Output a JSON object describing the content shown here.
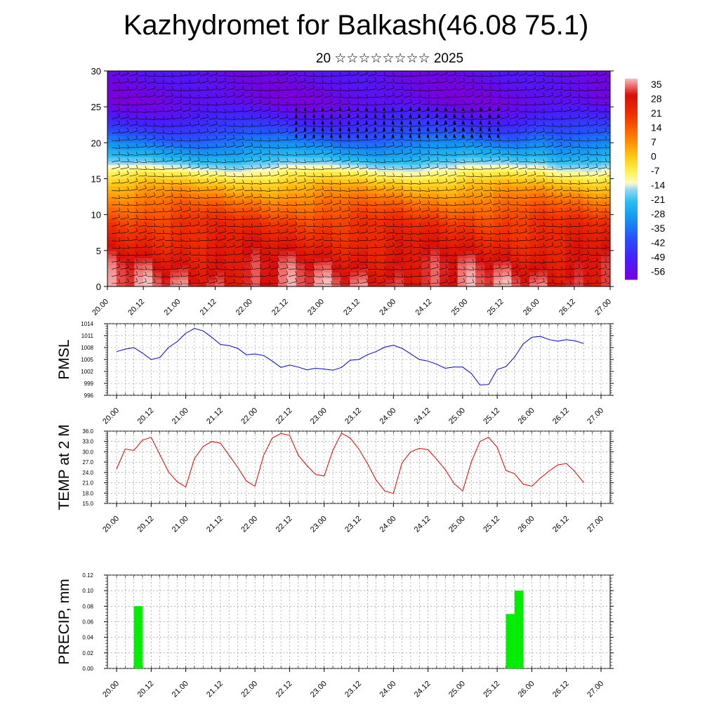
{
  "header": {
    "title": "Kazhydromet for Balkash(46.08 75.1)",
    "subtitle": "20 ☆☆☆☆☆☆☆☆ 2025"
  },
  "time_ticks": [
    "20.00",
    "20.12",
    "21.00",
    "21.12",
    "22.00",
    "22.12",
    "23.00",
    "23.12",
    "24.00",
    "24.12",
    "25.00",
    "25.12",
    "26.00",
    "26.12",
    "27.00"
  ],
  "chart_data": [
    {
      "type": "heatmap",
      "title": "",
      "xlabel": "",
      "ylabel": "",
      "xlim": [
        0,
        14
      ],
      "ylim": [
        0,
        30
      ],
      "yticks": [
        0,
        5,
        10,
        15,
        20,
        25,
        30
      ],
      "colorbar_labels": [
        "35",
        "28",
        "21",
        "14",
        "7",
        "0",
        "-7",
        "-14",
        "-21",
        "-28",
        "-35",
        "-42",
        "-49",
        "-56"
      ],
      "colorbar_range": [
        -60,
        38
      ],
      "profile": {
        "height": [
          0,
          3,
          6,
          9,
          12,
          14,
          16,
          18,
          20,
          22,
          24,
          26,
          28,
          30
        ],
        "value": [
          33,
          30,
          25,
          20,
          10,
          2,
          -10,
          -24,
          -34,
          -44,
          -52,
          -58,
          -56,
          -55
        ]
      },
      "wind_barbs": true
    },
    {
      "type": "line",
      "ylabel": "PMSL",
      "ylim": [
        996,
        1014
      ],
      "yticks": [
        "1014",
        "1011",
        "1008",
        "1005",
        "1002",
        "999",
        "996"
      ],
      "line_color": "#0000cc",
      "x": [
        0,
        0.25,
        0.5,
        0.75,
        1,
        1.25,
        1.5,
        1.75,
        2,
        2.25,
        2.5,
        2.75,
        3,
        3.25,
        3.5,
        3.75,
        4,
        4.25,
        4.5,
        4.75,
        5,
        5.25,
        5.5,
        5.75,
        6,
        6.25,
        6.5,
        6.75,
        7,
        7.25,
        7.5,
        7.75,
        8,
        8.25,
        8.5,
        8.75,
        9,
        9.25,
        9.5,
        9.75,
        10,
        10.25,
        10.5,
        10.75,
        11,
        11.25,
        11.5,
        11.75,
        12,
        12.25,
        12.5,
        12.75,
        13,
        13.25,
        13.5
      ],
      "values": [
        1007,
        1007.6,
        1008,
        1006.6,
        1005,
        1005.5,
        1008,
        1009.5,
        1011.6,
        1012.8,
        1012.2,
        1010.6,
        1008.8,
        1008.5,
        1007.8,
        1006.2,
        1006.4,
        1006,
        1004.6,
        1003,
        1003.6,
        1003.1,
        1002.4,
        1002.8,
        1002.6,
        1002.3,
        1003,
        1004.8,
        1005,
        1006.2,
        1007,
        1008.1,
        1008.6,
        1007.8,
        1006.4,
        1005,
        1004.6,
        1003.8,
        1002.8,
        1003.1,
        1003.1,
        1001.5,
        998.6,
        998.7,
        1002.5,
        1003.2,
        1005.6,
        1008.9,
        1010.6,
        1010.8,
        1010,
        1009.6,
        1010,
        1009.7,
        1009
      ]
    },
    {
      "type": "line",
      "ylabel": "TEMP at 2 M",
      "ylim": [
        15,
        36
      ],
      "yticks": [
        "36.0",
        "33.0",
        "30.0",
        "27.0",
        "24.0",
        "21.0",
        "18.0",
        "15.0"
      ],
      "line_color": "#dd0000",
      "x": [
        0,
        0.25,
        0.5,
        0.75,
        1,
        1.25,
        1.5,
        1.75,
        2,
        2.25,
        2.5,
        2.75,
        3,
        3.25,
        3.5,
        3.75,
        4,
        4.25,
        4.5,
        4.75,
        5,
        5.25,
        5.5,
        5.75,
        6,
        6.25,
        6.5,
        6.75,
        7,
        7.25,
        7.5,
        7.75,
        8,
        8.25,
        8.5,
        8.75,
        9,
        9.25,
        9.5,
        9.75,
        10,
        10.25,
        10.5,
        10.75,
        11,
        11.25,
        11.5,
        11.75,
        12,
        12.25,
        12.5,
        12.75,
        13,
        13.25,
        13.5
      ],
      "values": [
        25,
        30.8,
        30.4,
        33.4,
        34.2,
        29.2,
        24.2,
        21.3,
        19.8,
        28,
        31.5,
        33,
        32.5,
        29,
        25.5,
        21.5,
        20,
        29,
        34,
        35.3,
        34.8,
        29,
        26,
        23.4,
        23,
        30.4,
        35.4,
        34,
        30.8,
        26.6,
        21.8,
        18.6,
        17.9,
        26.8,
        30,
        31,
        30.6,
        27.8,
        24.8,
        20.8,
        18.6,
        27,
        33,
        34.2,
        31.3,
        24.6,
        23.6,
        20.6,
        20,
        22.4,
        24.4,
        26.2,
        26.6,
        24.2,
        21
      ]
    },
    {
      "type": "bar",
      "ylabel": "PRECIP, mm",
      "ylim": [
        0,
        0.12
      ],
      "yticks": [
        "0.12",
        "0.10",
        "0.08",
        "0.06",
        "0.04",
        "0.02",
        "0.00"
      ],
      "bar_color": "#00ee00",
      "bars": [
        {
          "x_start": 0.5,
          "x_end": 0.75,
          "value": 0.08
        },
        {
          "x_start": 11.25,
          "x_end": 11.5,
          "value": 0.07
        },
        {
          "x_start": 11.5,
          "x_end": 11.75,
          "value": 0.1
        }
      ]
    }
  ]
}
